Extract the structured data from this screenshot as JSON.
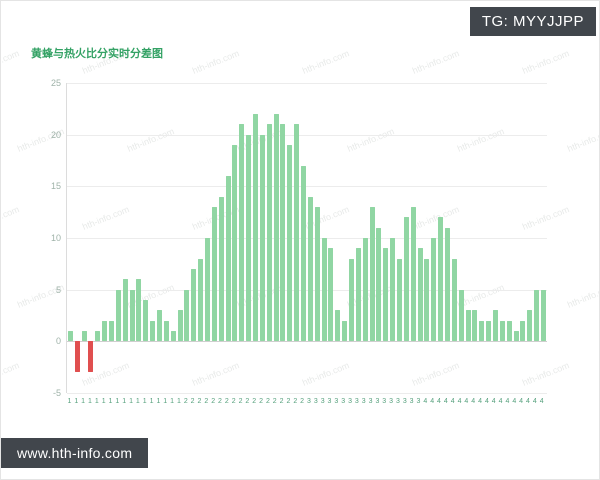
{
  "header": {
    "tg_label": "TG: MYYJJPP"
  },
  "title": "黄蜂与热火比分实时分差图",
  "footer": {
    "website": "www.hth-info.com"
  },
  "watermark": {
    "text": "hth-info.com"
  },
  "colors": {
    "accent_green": "#34a265",
    "bar_positive": "#90d6a3",
    "bar_negative": "#e04f4f",
    "badge_bg": "#41464c"
  },
  "chart_data": {
    "type": "bar",
    "title": "黄蜂与热火比分实时分差图",
    "xlabel": "",
    "ylabel": "",
    "ylim": [
      -5,
      25
    ],
    "yticks": [
      25,
      20,
      15,
      10,
      5,
      0,
      -5
    ],
    "grid": true,
    "bar_color": "#90d6a3",
    "negative_color": "#e04f4f",
    "categories": [
      "1",
      "1",
      "1",
      "1",
      "1",
      "1",
      "1",
      "1",
      "1",
      "1",
      "1",
      "1",
      "1",
      "1",
      "1",
      "1",
      "1",
      "2",
      "2",
      "2",
      "2",
      "2",
      "2",
      "2",
      "2",
      "2",
      "2",
      "2",
      "2",
      "2",
      "2",
      "2",
      "2",
      "2",
      "2",
      "3",
      "3",
      "3",
      "3",
      "3",
      "3",
      "3",
      "3",
      "3",
      "3",
      "3",
      "3",
      "3",
      "3",
      "3",
      "3",
      "3",
      "4",
      "4",
      "4",
      "4",
      "4",
      "4",
      "4",
      "4",
      "4",
      "4",
      "4",
      "4",
      "4",
      "4",
      "4",
      "4",
      "4",
      "4"
    ],
    "values": [
      1,
      -3,
      1,
      -3,
      1,
      2,
      2,
      5,
      6,
      5,
      6,
      4,
      2,
      3,
      2,
      1,
      3,
      5,
      7,
      8,
      10,
      13,
      14,
      16,
      19,
      21,
      20,
      22,
      20,
      21,
      22,
      21,
      19,
      21,
      17,
      14,
      13,
      10,
      9,
      3,
      2,
      8,
      9,
      10,
      13,
      11,
      9,
      10,
      8,
      12,
      13,
      9,
      8,
      10,
      12,
      11,
      8,
      5,
      3,
      3,
      2,
      2,
      3,
      2,
      2,
      1,
      2,
      3,
      5,
      5
    ]
  }
}
